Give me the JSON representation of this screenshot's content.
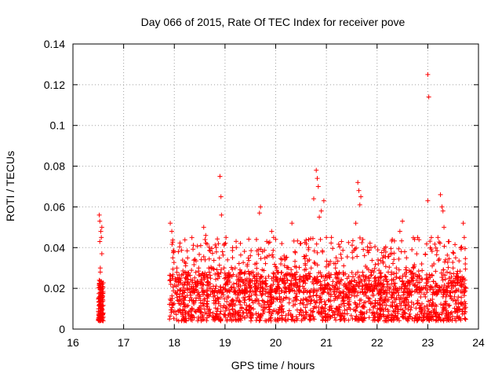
{
  "chart_data": {
    "type": "scatter",
    "title": "Day 066 of 2015, Rate Of TEC Index for receiver pove",
    "xlabel": "GPS time / hours",
    "ylabel": "ROTI / TECUs",
    "xlim": [
      16,
      24
    ],
    "ylim": [
      0,
      0.14
    ],
    "x_ticks": [
      16,
      17,
      18,
      19,
      20,
      21,
      22,
      23,
      24
    ],
    "x_tick_labels": [
      "16",
      "17",
      "18",
      "19",
      "20",
      "21",
      "22",
      "23",
      "24"
    ],
    "y_ticks": [
      0,
      0.02,
      0.04,
      0.06,
      0.08,
      0.1,
      0.12,
      0.14
    ],
    "y_tick_labels": [
      "0",
      "0.02",
      "0.04",
      "0.06",
      "0.08",
      "0.1",
      "0.12",
      "0.14"
    ],
    "grid": true,
    "marker": "+",
    "color": "#ff0000",
    "series": [
      {
        "name": "ROTI",
        "points": [
          [
            16.52,
            0.056
          ],
          [
            16.53,
            0.053
          ],
          [
            16.55,
            0.048
          ],
          [
            16.56,
            0.045
          ],
          [
            16.57,
            0.037
          ],
          [
            16.54,
            0.03
          ],
          [
            16.52,
            0.024
          ],
          [
            16.55,
            0.02
          ],
          [
            16.53,
            0.016
          ],
          [
            16.56,
            0.012
          ],
          [
            16.54,
            0.009
          ],
          [
            16.52,
            0.007
          ],
          [
            16.57,
            0.006
          ],
          [
            16.55,
            0.014
          ],
          [
            16.58,
            0.022
          ],
          [
            16.53,
            0.043
          ],
          [
            16.57,
            0.05
          ],
          [
            16.54,
            0.028
          ],
          [
            16.56,
            0.018
          ],
          [
            16.53,
            0.01
          ],
          [
            17.92,
            0.052
          ],
          [
            17.95,
            0.048
          ],
          [
            17.97,
            0.035
          ],
          [
            17.93,
            0.022
          ],
          [
            17.96,
            0.015
          ],
          [
            17.98,
            0.012
          ],
          [
            18.02,
            0.018
          ],
          [
            18.05,
            0.03
          ],
          [
            18.08,
            0.038
          ],
          [
            18.12,
            0.025
          ],
          [
            18.15,
            0.016
          ],
          [
            18.2,
            0.011
          ],
          [
            18.25,
            0.02
          ],
          [
            18.3,
            0.014
          ],
          [
            18.35,
            0.01
          ],
          [
            18.42,
            0.022
          ],
          [
            18.48,
            0.03
          ],
          [
            18.52,
            0.041
          ],
          [
            18.58,
            0.05
          ],
          [
            18.62,
            0.046
          ],
          [
            18.68,
            0.03
          ],
          [
            18.72,
            0.02
          ],
          [
            18.78,
            0.014
          ],
          [
            18.85,
            0.018
          ],
          [
            18.9,
            0.075
          ],
          [
            18.92,
            0.065
          ],
          [
            18.93,
            0.056
          ],
          [
            18.95,
            0.038
          ],
          [
            18.98,
            0.03
          ],
          [
            19.02,
            0.045
          ],
          [
            19.05,
            0.034
          ],
          [
            19.1,
            0.026
          ],
          [
            19.15,
            0.04
          ],
          [
            19.2,
            0.03
          ],
          [
            19.25,
            0.018
          ],
          [
            19.3,
            0.012
          ],
          [
            19.35,
            0.008
          ],
          [
            19.42,
            0.02
          ],
          [
            19.5,
            0.036
          ],
          [
            19.55,
            0.028
          ],
          [
            19.62,
            0.044
          ],
          [
            19.68,
            0.057
          ],
          [
            19.7,
            0.06
          ],
          [
            19.74,
            0.038
          ],
          [
            19.8,
            0.025
          ],
          [
            19.85,
            0.016
          ],
          [
            19.92,
            0.048
          ],
          [
            19.96,
            0.045
          ],
          [
            20.02,
            0.03
          ],
          [
            20.08,
            0.024
          ],
          [
            20.12,
            0.042
          ],
          [
            20.18,
            0.034
          ],
          [
            20.25,
            0.02
          ],
          [
            20.32,
            0.052
          ],
          [
            20.38,
            0.038
          ],
          [
            20.42,
            0.016
          ],
          [
            20.5,
            0.025
          ],
          [
            20.55,
            0.012
          ],
          [
            20.6,
            0.036
          ],
          [
            20.65,
            0.044
          ],
          [
            20.7,
            0.03
          ],
          [
            20.75,
            0.064
          ],
          [
            20.8,
            0.078
          ],
          [
            20.82,
            0.074
          ],
          [
            20.84,
            0.07
          ],
          [
            20.86,
            0.055
          ],
          [
            20.9,
            0.058
          ],
          [
            20.95,
            0.063
          ],
          [
            21.0,
            0.045
          ],
          [
            21.05,
            0.032
          ],
          [
            21.1,
            0.045
          ],
          [
            21.18,
            0.03
          ],
          [
            21.25,
            0.02
          ],
          [
            21.35,
            0.014
          ],
          [
            21.45,
            0.02
          ],
          [
            21.52,
            0.035
          ],
          [
            21.58,
            0.052
          ],
          [
            21.62,
            0.072
          ],
          [
            21.64,
            0.068
          ],
          [
            21.66,
            0.061
          ],
          [
            21.68,
            0.065
          ],
          [
            21.72,
            0.044
          ],
          [
            21.8,
            0.03
          ],
          [
            21.88,
            0.04
          ],
          [
            21.95,
            0.025
          ],
          [
            22.02,
            0.034
          ],
          [
            22.1,
            0.02
          ],
          [
            22.15,
            0.014
          ],
          [
            22.22,
            0.028
          ],
          [
            22.3,
            0.044
          ],
          [
            22.38,
            0.03
          ],
          [
            22.45,
            0.048
          ],
          [
            22.5,
            0.053
          ],
          [
            22.58,
            0.035
          ],
          [
            22.65,
            0.022
          ],
          [
            22.72,
            0.03
          ],
          [
            22.8,
            0.045
          ],
          [
            22.88,
            0.032
          ],
          [
            22.95,
            0.02
          ],
          [
            23.0,
            0.125
          ],
          [
            23.02,
            0.114
          ],
          [
            23.0,
            0.063
          ],
          [
            23.05,
            0.04
          ],
          [
            23.12,
            0.032
          ],
          [
            23.2,
            0.045
          ],
          [
            23.25,
            0.066
          ],
          [
            23.28,
            0.06
          ],
          [
            23.3,
            0.058
          ],
          [
            23.32,
            0.05
          ],
          [
            23.35,
            0.034
          ],
          [
            23.42,
            0.025
          ],
          [
            23.5,
            0.03
          ],
          [
            23.55,
            0.035
          ],
          [
            23.6,
            0.025
          ],
          [
            23.65,
            0.04
          ],
          [
            23.7,
            0.052
          ],
          [
            23.72,
            0.045
          ],
          [
            23.74,
            0.032
          ],
          [
            23.75,
            0.02
          ]
        ]
      }
    ]
  }
}
